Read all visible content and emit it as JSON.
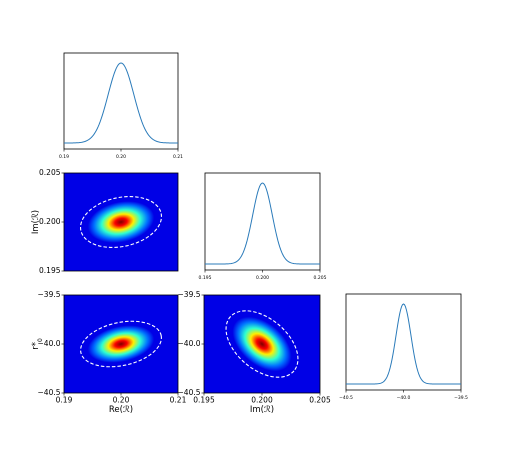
{
  "chart_data": {
    "type": "corner",
    "diagonal": [
      {
        "id": "re",
        "type": "line",
        "mean": 0.2,
        "sigma": 0.00225,
        "xlim": [
          0.19,
          0.21
        ],
        "xticks": [
          "0.19",
          "0.20",
          "0.21"
        ],
        "xtick_values": [
          0.19,
          0.2,
          0.21
        ]
      },
      {
        "id": "im",
        "type": "line",
        "mean": 0.2,
        "sigma": 0.00085,
        "xlim": [
          0.195,
          0.205
        ],
        "xticks": [
          "0.195",
          "0.200",
          "0.205"
        ],
        "xtick_values": [
          0.195,
          0.2,
          0.205
        ]
      },
      {
        "id": "r0",
        "type": "line",
        "mean": -40.0,
        "sigma": 0.065,
        "xlim": [
          -40.5,
          -39.5
        ],
        "xticks": [
          "−40.5",
          "−40.0",
          "−39.5"
        ],
        "xtick_values": [
          -40.5,
          -40.0,
          -39.5
        ]
      }
    ],
    "off_diagonal": [
      {
        "id": "im_vs_re",
        "type": "heatmap",
        "x": "re",
        "y": "im",
        "xlim": [
          0.19,
          0.21
        ],
        "ylim": [
          0.195,
          0.205
        ],
        "yticks": [
          "0.205",
          "0.200",
          "0.195"
        ],
        "ytick_values": [
          0.205,
          0.2,
          0.195
        ],
        "ylabel": "Im(ℛ)",
        "center": [
          0.2,
          0.2
        ],
        "contour_semi_axes": [
          0.0072,
          0.0025
        ],
        "contour_angle_deg": -12
      },
      {
        "id": "r0_vs_re",
        "type": "heatmap",
        "x": "re",
        "y": "r0",
        "xlim": [
          0.19,
          0.21
        ],
        "ylim": [
          -40.5,
          -39.5
        ],
        "xticks": [
          "0.19",
          "0.20",
          "0.21"
        ],
        "xtick_values": [
          0.19,
          0.2,
          0.21
        ],
        "yticks": [
          "−39.5",
          "−40.0",
          "−40.5"
        ],
        "ytick_values": [
          -39.5,
          -40.0,
          -40.5
        ],
        "xlabel": "Re(ℛ)",
        "ylabel": "r*",
        "ylabel_sub": "0",
        "center": [
          0.2,
          -40.0
        ],
        "contour_semi_axes": [
          0.0072,
          0.22
        ],
        "contour_angle_deg": -12
      },
      {
        "id": "r0_vs_im",
        "type": "heatmap",
        "x": "im",
        "y": "r0",
        "xlim": [
          0.195,
          0.205
        ],
        "ylim": [
          -40.5,
          -39.5
        ],
        "xticks": [
          "0.195",
          "0.200",
          "0.205"
        ],
        "xtick_values": [
          0.195,
          0.2,
          0.205
        ],
        "yticks": [
          "−39.5",
          "−40.0",
          "−40.5"
        ],
        "ytick_values": [
          -39.5,
          -40.0,
          -40.5
        ],
        "xlabel": "Im(ℛ)",
        "center": [
          0.2,
          -40.0
        ],
        "contour_semi_axes": [
          0.0036,
          0.26
        ],
        "contour_angle_deg": 40
      }
    ],
    "colors": {
      "line": "#2b7bba",
      "contour": "#ffffff",
      "colormap": "jet"
    }
  }
}
